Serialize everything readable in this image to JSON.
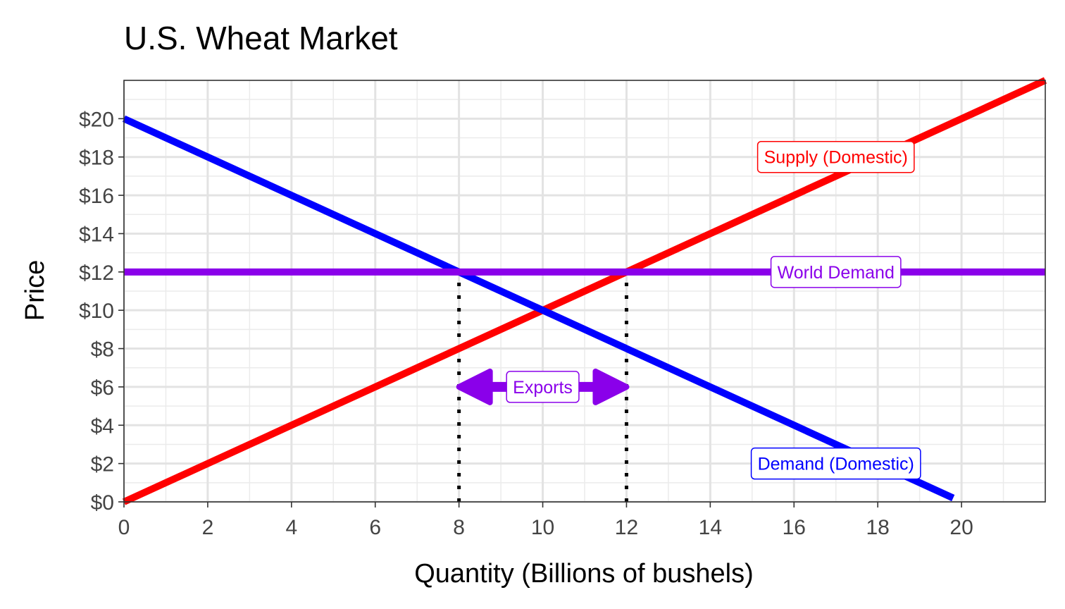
{
  "chart_data": {
    "type": "line",
    "title": "U.S. Wheat Market",
    "xlabel": "Quantity (Billions of bushels)",
    "ylabel": "Price",
    "xlim": [
      0,
      22
    ],
    "ylim": [
      0,
      22
    ],
    "grid": true,
    "x_ticks": [
      0,
      2,
      4,
      6,
      8,
      10,
      12,
      14,
      16,
      18,
      20
    ],
    "x_tick_labels": [
      "0",
      "2",
      "4",
      "6",
      "8",
      "10",
      "12",
      "14",
      "16",
      "18",
      "20"
    ],
    "y_ticks": [
      0,
      2,
      4,
      6,
      8,
      10,
      12,
      14,
      16,
      18,
      20
    ],
    "y_tick_labels": [
      "$0",
      "$2",
      "$4",
      "$6",
      "$8",
      "$10",
      "$12",
      "$14",
      "$16",
      "$18",
      "$20"
    ],
    "series": [
      {
        "key": "supply",
        "color": "#ff0000",
        "x": [
          0,
          22
        ],
        "y": [
          0,
          22
        ]
      },
      {
        "key": "demand",
        "color": "#0000ff",
        "x": [
          0,
          19.8
        ],
        "y": [
          20,
          0.2
        ]
      },
      {
        "key": "world_demand",
        "color": "#8a00ea",
        "x": [
          0,
          22
        ],
        "y": [
          12,
          12
        ]
      }
    ],
    "reference_lines": [
      {
        "x": 8,
        "y_from": 0,
        "y_to": 12,
        "style": "dotted",
        "color": "#000000"
      },
      {
        "x": 12,
        "y_from": 0,
        "y_to": 12,
        "style": "dotted",
        "color": "#000000"
      }
    ],
    "arrow": {
      "x_from": 8,
      "x_to": 12,
      "y": 6,
      "color": "#8a00ea",
      "both_ends": true
    },
    "annotations": [
      {
        "text": "Supply (Domestic)",
        "x": 17,
        "y": 18,
        "color": "#ff0000"
      },
      {
        "text": "World Demand",
        "x": 17,
        "y": 12,
        "color": "#8a00ea"
      },
      {
        "text": "Exports",
        "x": 10,
        "y": 6,
        "color": "#8a00ea"
      },
      {
        "text": "Demand (Domestic)",
        "x": 17,
        "y": 2,
        "color": "#0000ff"
      }
    ]
  }
}
